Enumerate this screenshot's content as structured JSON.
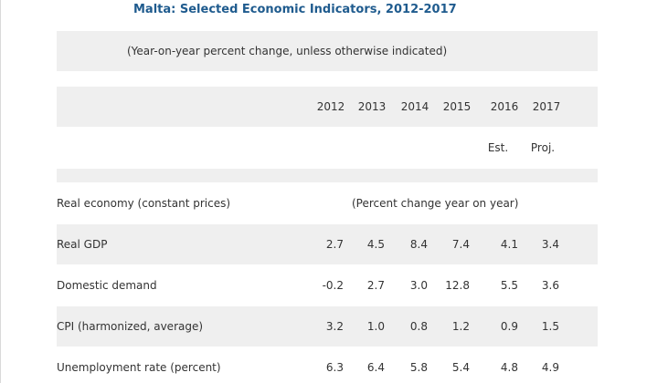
{
  "title": "Malta: Selected Economic Indicators, 2012-2017",
  "subtitle": "(Year-on-year percent change, unless otherwise indicated)",
  "years": [
    "2012",
    "2013",
    "2014",
    "2015",
    "2016",
    "2017"
  ],
  "year_notes": [
    "",
    "",
    "",
    "",
    "Est.",
    "Proj."
  ],
  "section": {
    "label": "Real economy (constant prices)",
    "note": "(Percent change year on year)"
  },
  "rows": [
    {
      "label": "Real GDP",
      "values": [
        "2.7",
        "4.5",
        "8.4",
        "7.4",
        "4.1",
        "3.4"
      ]
    },
    {
      "label": "Domestic demand",
      "values": [
        "-0.2",
        "2.7",
        "3.0",
        "12.8",
        "5.5",
        "3.6"
      ]
    },
    {
      "label": "CPI (harmonized, average)",
      "values": [
        "3.2",
        "1.0",
        "0.8",
        "1.2",
        "0.9",
        "1.5"
      ]
    },
    {
      "label": "Unemployment rate (percent)",
      "values": [
        "6.3",
        "6.4",
        "5.8",
        "5.4",
        "4.8",
        "4.9"
      ]
    }
  ],
  "colors": {
    "title": "#1f5b8e",
    "band": "#efefef",
    "text": "#333333"
  }
}
